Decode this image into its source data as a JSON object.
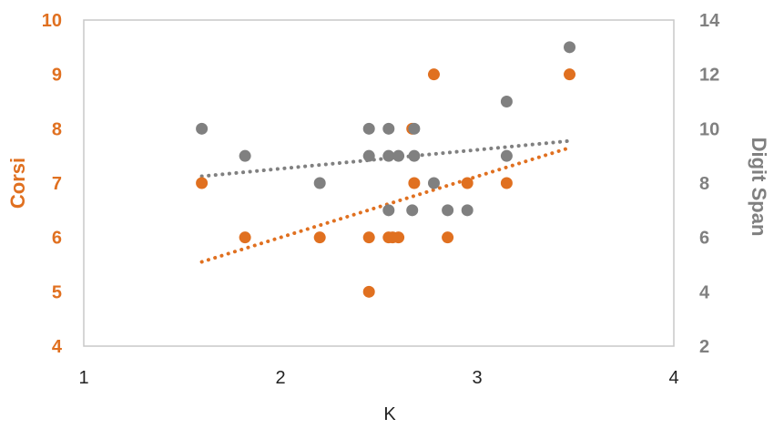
{
  "chart_data": {
    "type": "scatter",
    "xlabel": "K",
    "ylabel_left": "Corsi",
    "ylabel_right": "Digit Span",
    "xlim": [
      1,
      4
    ],
    "ylim_left": [
      4,
      10
    ],
    "ylim_right": [
      2,
      14
    ],
    "x_ticks": [
      "1",
      "2",
      "3",
      "4"
    ],
    "y_ticks_left": [
      "4",
      "5",
      "6",
      "7",
      "8",
      "9",
      "10"
    ],
    "y_ticks_right": [
      "2",
      "4",
      "6",
      "8",
      "10",
      "12",
      "14"
    ],
    "grid": false,
    "legend": "none",
    "series": [
      {
        "axis": "left",
        "color": "#E07020",
        "trendline": true,
        "points": [
          {
            "x": 1.6,
            "y": 7
          },
          {
            "x": 1.82,
            "y": 6
          },
          {
            "x": 2.2,
            "y": 6
          },
          {
            "x": 2.45,
            "y": 6
          },
          {
            "x": 2.45,
            "y": 5
          },
          {
            "x": 2.55,
            "y": 6
          },
          {
            "x": 2.57,
            "y": 6
          },
          {
            "x": 2.6,
            "y": 6
          },
          {
            "x": 2.67,
            "y": 8
          },
          {
            "x": 2.68,
            "y": 7
          },
          {
            "x": 2.78,
            "y": 9
          },
          {
            "x": 2.85,
            "y": 6
          },
          {
            "x": 2.95,
            "y": 7
          },
          {
            "x": 3.15,
            "y": 7
          },
          {
            "x": 3.47,
            "y": 9
          }
        ],
        "trend": {
          "x": [
            1.6,
            3.47
          ],
          "y": [
            5.55,
            7.65
          ]
        }
      },
      {
        "axis": "right",
        "color": "#808080",
        "trendline": true,
        "points": [
          {
            "x": 1.6,
            "y": 10
          },
          {
            "x": 1.82,
            "y": 9
          },
          {
            "x": 2.2,
            "y": 8
          },
          {
            "x": 2.45,
            "y": 10
          },
          {
            "x": 2.45,
            "y": 9
          },
          {
            "x": 2.55,
            "y": 10
          },
          {
            "x": 2.55,
            "y": 9
          },
          {
            "x": 2.55,
            "y": 7
          },
          {
            "x": 2.6,
            "y": 9
          },
          {
            "x": 2.67,
            "y": 7
          },
          {
            "x": 2.68,
            "y": 10
          },
          {
            "x": 2.68,
            "y": 9
          },
          {
            "x": 2.78,
            "y": 8
          },
          {
            "x": 2.85,
            "y": 7
          },
          {
            "x": 2.95,
            "y": 7
          },
          {
            "x": 3.15,
            "y": 11
          },
          {
            "x": 3.15,
            "y": 9
          },
          {
            "x": 3.47,
            "y": 13
          }
        ],
        "trend": {
          "x": [
            1.6,
            3.47
          ],
          "y": [
            8.25,
            9.55
          ]
        }
      }
    ]
  }
}
